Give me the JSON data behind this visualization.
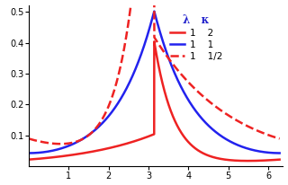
{
  "title": "",
  "xlim": [
    0,
    6.35
  ],
  "ylim": [
    0,
    0.52
  ],
  "xticks": [
    1,
    2,
    3,
    4,
    5,
    6
  ],
  "yticks": [
    0.1,
    0.2,
    0.3,
    0.4,
    0.5
  ],
  "curves": [
    {
      "lambda": 1,
      "kappa": 2,
      "color": "#ee2222",
      "linestyle": "solid",
      "lw": 1.8
    },
    {
      "lambda": 1,
      "kappa": 1,
      "color": "#2222ee",
      "linestyle": "solid",
      "lw": 1.8
    },
    {
      "lambda": 1,
      "kappa": 0.5,
      "color": "#ee2222",
      "linestyle": "dashed",
      "lw": 1.8
    }
  ],
  "legend_header": "λ   κ",
  "legend_labels": [
    "1    2",
    "1    1",
    "1    1/2"
  ],
  "legend_colors": [
    "#ee2222",
    "#2222ee",
    "#ee2222"
  ],
  "legend_linestyles": [
    "-",
    "-",
    "--"
  ],
  "background_color": "#ffffff",
  "figsize": [
    3.2,
    2.06
  ],
  "dpi": 100
}
